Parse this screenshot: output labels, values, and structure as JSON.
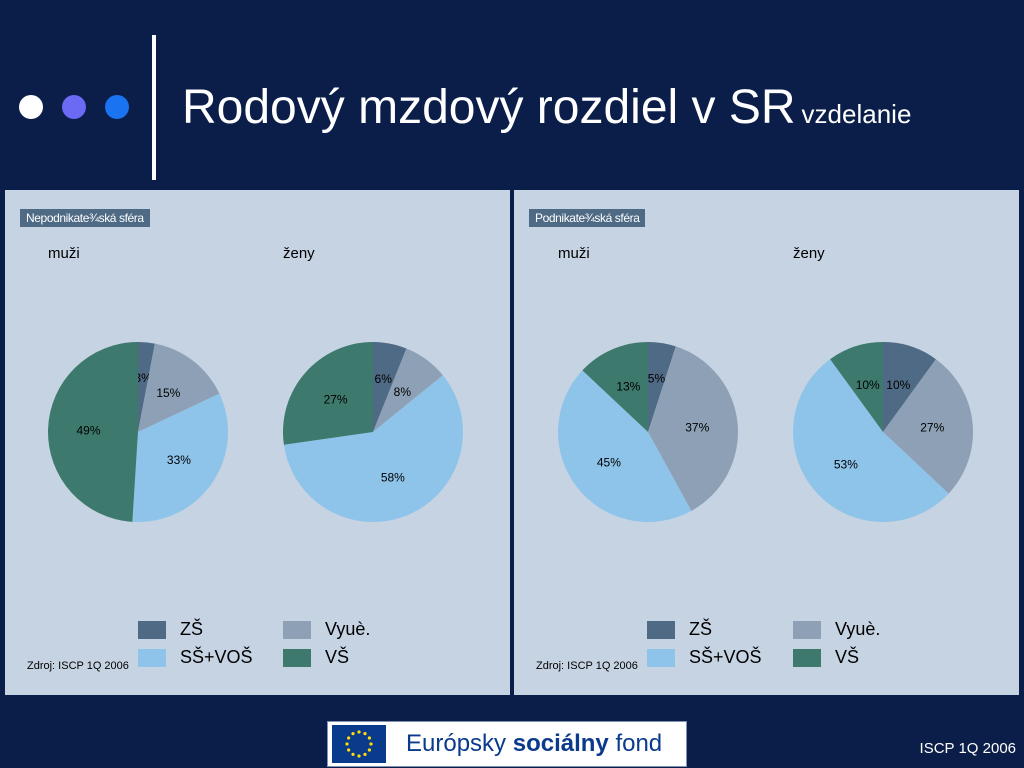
{
  "title": {
    "main": "Rodový mzdový rozdiel v SR",
    "sub": "vzdelanie"
  },
  "colors": {
    "background": "#0b1e49",
    "panel": "#c6d3e2",
    "dots": [
      "#ffffff",
      "#6a6af5",
      "#1a73f0"
    ],
    "ZS": "#4f6a85",
    "Vyuc": "#8da0b5",
    "SSVOS": "#8fc4ea",
    "VS": "#3d7a6d"
  },
  "panels": [
    {
      "tag": "Nepodnikate¾ská sféra",
      "source": "Zdroj: ISCP 1Q 2006",
      "legend": [
        "ZŠ",
        "Vyuè.",
        "SŠ+VOŠ",
        "VŠ"
      ]
    },
    {
      "tag": "Podnikate¾ská sféra",
      "source": "Zdroj: ISCP 1Q 2006",
      "legend": [
        "ZŠ",
        "Vyuè.",
        "SŠ+VOŠ",
        "VŠ"
      ]
    }
  ],
  "chart_data": [
    {
      "type": "pie",
      "panel": "Nepodnikate¾ská sféra",
      "title": "muži",
      "categories": [
        "ZŠ",
        "Vyuè.",
        "SŠ+VOŠ",
        "VŠ"
      ],
      "values": [
        3,
        15,
        33,
        49
      ],
      "labels": [
        "3%",
        "15%",
        "33%",
        "49%"
      ]
    },
    {
      "type": "pie",
      "panel": "Nepodnikate¾ská sféra",
      "title": "ženy",
      "categories": [
        "ZŠ",
        "Vyuè.",
        "SŠ+VOŠ",
        "VŠ"
      ],
      "values": [
        6,
        8,
        58,
        27
      ],
      "labels": [
        "6%",
        "8%",
        "58%",
        "27%"
      ]
    },
    {
      "type": "pie",
      "panel": "Podnikate¾ská sféra",
      "title": "muži",
      "categories": [
        "ZŠ",
        "Vyuè.",
        "SŠ+VOŠ",
        "VŠ"
      ],
      "values": [
        5,
        37,
        45,
        13
      ],
      "labels": [
        "5%",
        "37%",
        "45%",
        "13%"
      ]
    },
    {
      "type": "pie",
      "panel": "Podnikate¾ská sféra",
      "title": "ženy",
      "categories": [
        "ZŠ",
        "Vyuè.",
        "SŠ+VOŠ",
        "VŠ"
      ],
      "values": [
        10,
        27,
        53,
        10
      ],
      "labels": [
        "10%",
        "27%",
        "53%",
        "10%"
      ]
    }
  ],
  "logo": {
    "text_prefix": "Európsky",
    "text_bold": "sociálny",
    "text_suffix": "fond"
  },
  "footer": "ISCP 1Q 2006"
}
